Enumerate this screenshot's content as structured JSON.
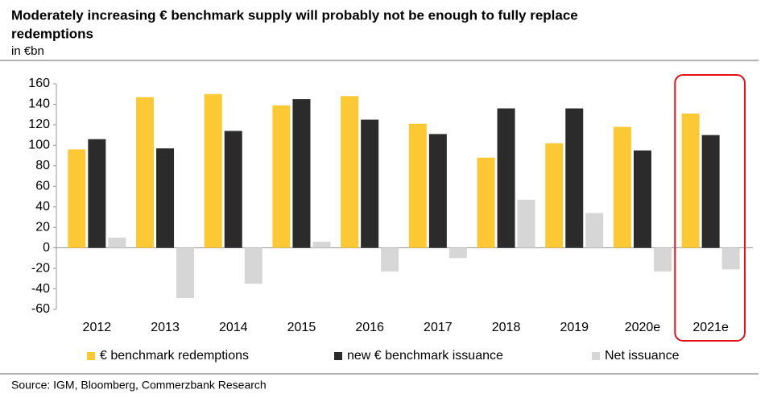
{
  "chart_data": {
    "type": "bar",
    "title": "Moderately increasing € benchmark supply will probably not be enough to fully replace redemptions",
    "subtitle": "in €bn",
    "source": "Source: IGM, Bloomberg, Commerzbank Research",
    "categories": [
      "2012",
      "2013",
      "2014",
      "2015",
      "2016",
      "2017",
      "2018",
      "2019",
      "2020e",
      "2021e"
    ],
    "series": [
      {
        "name": "€ benchmark redemptions",
        "color": "#fcc935",
        "values": [
          96,
          147,
          150,
          139,
          148,
          121,
          88,
          102,
          118,
          131
        ]
      },
      {
        "name": "new € benchmark issuance",
        "color": "#2b2b2b",
        "values": [
          106,
          97,
          114,
          145,
          125,
          111,
          136,
          136,
          95,
          110
        ]
      },
      {
        "name": "Net issuance",
        "color": "#d6d6d6",
        "values": [
          10,
          -49,
          -35,
          6,
          -23,
          -10,
          47,
          34,
          -23,
          -21
        ]
      }
    ],
    "ylim": [
      -60,
      160
    ],
    "yticks": [
      -60,
      -40,
      -20,
      0,
      20,
      40,
      60,
      80,
      100,
      120,
      140,
      160
    ],
    "grid": false
  }
}
